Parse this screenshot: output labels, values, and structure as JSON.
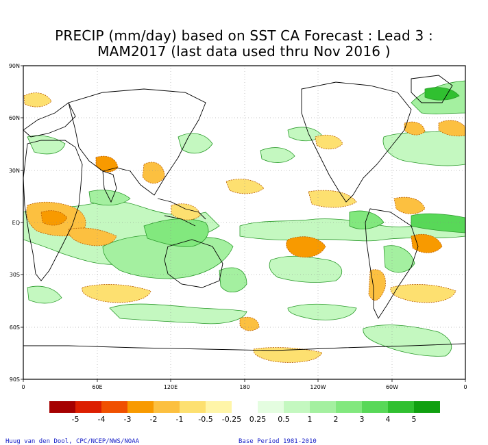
{
  "title": {
    "line1": "PRECIP (mm/day) based on SST CA Forecast : Lead 3 :",
    "line2": "MAM2017 (last data used thru Nov 2016 )"
  },
  "lat_labels": [
    "90N",
    "60N",
    "30N",
    "EQ",
    "30S",
    "60S",
    "90S"
  ],
  "lon_labels": [
    "0",
    "60E",
    "120E",
    "180",
    "120W",
    "60W",
    "0"
  ],
  "colorbar": {
    "labels": [
      "-5",
      "-4",
      "-3",
      "-2",
      "-1",
      "-0.5",
      "-0.25",
      "0.25",
      "0.5",
      "1",
      "2",
      "3",
      "4",
      "5"
    ],
    "colors": [
      "#a50000",
      "#dc1e00",
      "#f05000",
      "#f89a00",
      "#fcc040",
      "#fde070",
      "#fff5a8",
      "#ffffff",
      "#e4fde0",
      "#c4f8c0",
      "#a4f0a0",
      "#82e87e",
      "#58d858",
      "#30c030",
      "#10a010"
    ]
  },
  "credits": {
    "left": "Huug van den Dool, CPC/NCEP/NWS/NOAA",
    "right": "Base Period 1981-2010"
  }
}
